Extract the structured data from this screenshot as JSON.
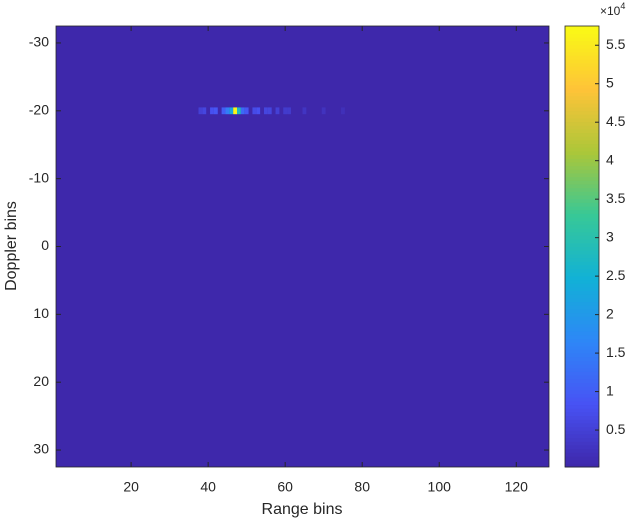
{
  "chart_data": {
    "type": "heatmap",
    "xlabel": "Range bins",
    "ylabel": "Doppler bins",
    "xlim": [
      0.5,
      128.5
    ],
    "xticks": [
      20,
      40,
      60,
      80,
      100,
      120
    ],
    "ylim": [
      -32.5,
      32.5
    ],
    "yticks": [
      -30,
      -20,
      -10,
      0,
      10,
      20,
      30
    ],
    "y_reversed": true,
    "background_value": 0.05,
    "x": [
      38,
      39,
      41,
      42,
      44,
      45,
      46,
      47,
      48,
      49,
      50,
      52,
      53,
      55,
      56,
      58,
      60,
      61,
      65,
      70,
      75
    ],
    "y": [
      -20,
      -20,
      -20,
      -20,
      -20,
      -20,
      -20,
      -20,
      -20,
      -20,
      -20,
      -20,
      -20,
      -20,
      -20,
      -20,
      -20,
      -20,
      -20,
      -20,
      -20
    ],
    "values": [
      0.5,
      0.6,
      0.8,
      0.9,
      1.0,
      1.5,
      2.2,
      5.7,
      2.8,
      1.2,
      0.9,
      0.7,
      0.8,
      0.6,
      0.6,
      0.5,
      0.4,
      0.4,
      0.3,
      0.25,
      0.2
    ],
    "colormap": "parula",
    "clim": [
      0.02,
      5.75
    ],
    "cticks": [
      0.5,
      1,
      1.5,
      2,
      2.5,
      3,
      3.5,
      4,
      4.5,
      5,
      5.5
    ],
    "colorbar_multiplier": "×10",
    "colorbar_exponent": "4"
  }
}
